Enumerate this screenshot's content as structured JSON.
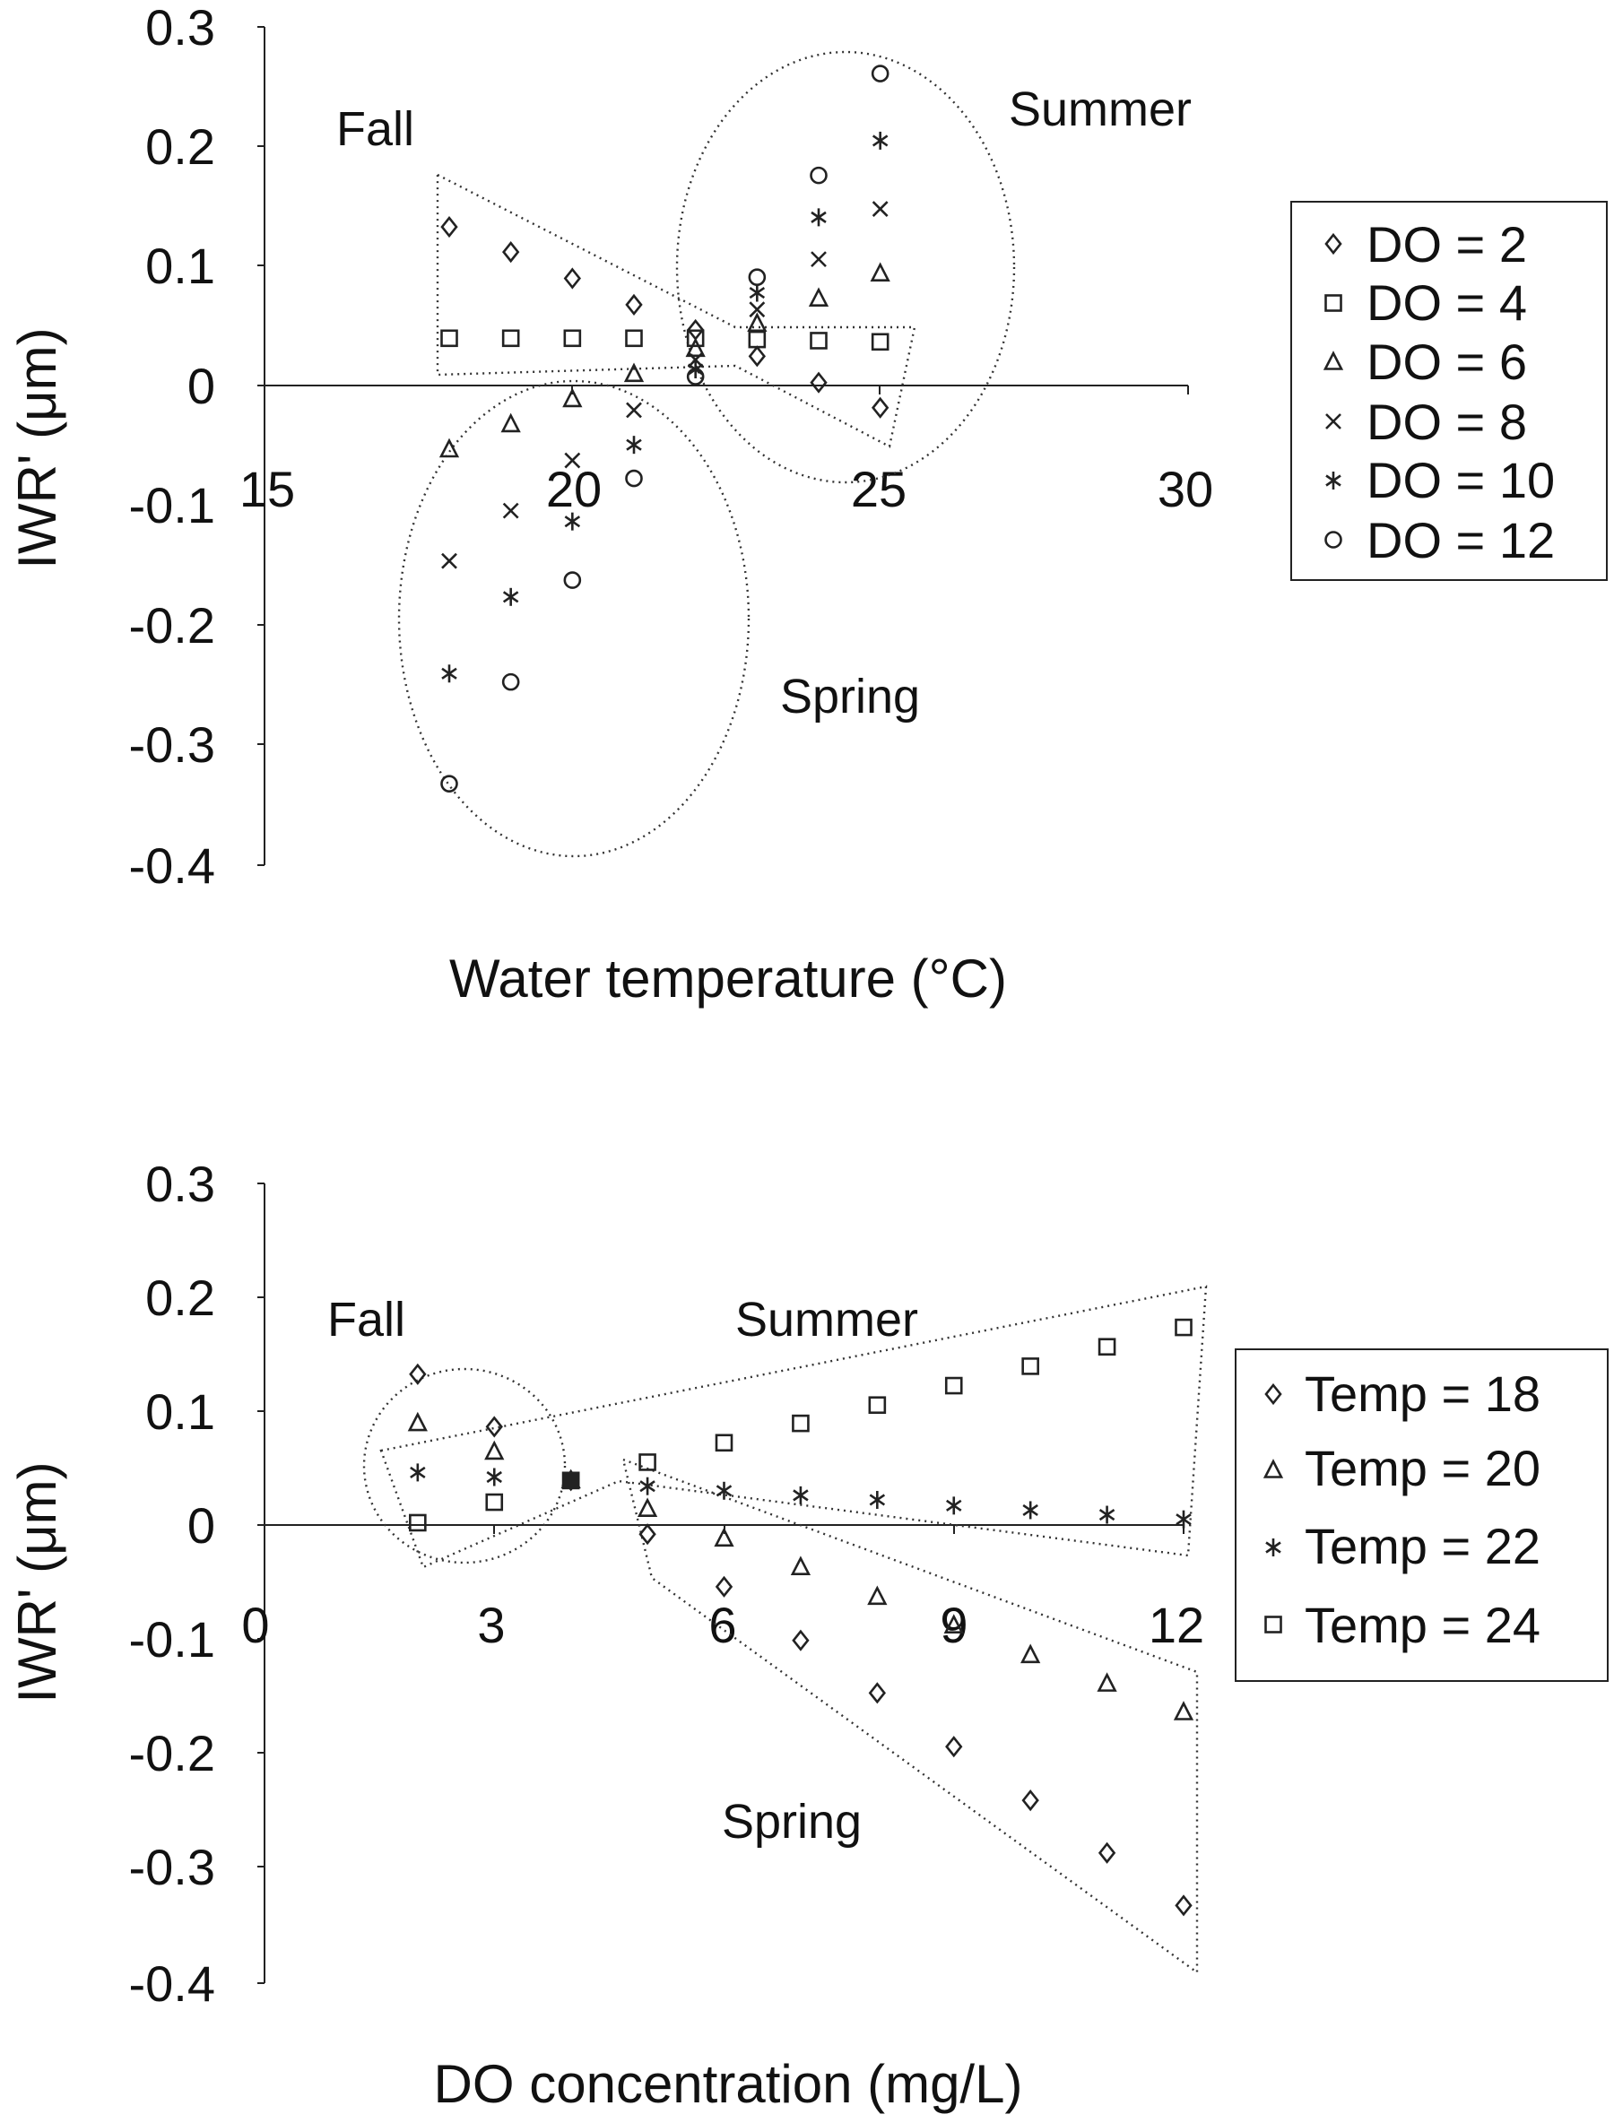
{
  "chart_data": [
    {
      "type": "scatter",
      "title": "",
      "xlabel": "Water temperature (°C)",
      "ylabel": "IWR' (μm)",
      "xlim": [
        15,
        30
      ],
      "ylim": [
        -0.4,
        0.3
      ],
      "x_ticks": [
        "15",
        "20",
        "25",
        "30"
      ],
      "y_ticks": [
        "0.3",
        "0.2",
        "0.1",
        "0",
        "-0.1",
        "-0.2",
        "-0.3",
        "-0.4"
      ],
      "grid": false,
      "legend_position": "right",
      "x": [
        18,
        19,
        20,
        21,
        22,
        23,
        24,
        25
      ],
      "series": [
        {
          "name": "DO = 2",
          "marker": "diamond",
          "values": [
            0.133,
            0.112,
            0.09,
            0.068,
            0.047,
            0.025,
            0.003,
            -0.018
          ]
        },
        {
          "name": "DO = 4",
          "marker": "square",
          "values": [
            0.04,
            0.04,
            0.04,
            0.04,
            0.04,
            0.039,
            0.038,
            0.037
          ]
        },
        {
          "name": "DO = 6",
          "marker": "triangle",
          "values": [
            -0.053,
            -0.032,
            -0.011,
            0.01,
            0.031,
            0.052,
            0.073,
            0.094
          ]
        },
        {
          "name": "DO = 8",
          "marker": "x",
          "values": [
            -0.146,
            -0.104,
            -0.062,
            -0.02,
            0.022,
            0.064,
            0.106,
            0.148
          ]
        },
        {
          "name": "DO = 10",
          "marker": "asterisk",
          "values": [
            -0.24,
            -0.176,
            -0.113,
            -0.049,
            0.014,
            0.078,
            0.141,
            0.205
          ]
        },
        {
          "name": "DO = 12",
          "marker": "circle",
          "values": [
            -0.332,
            -0.247,
            -0.162,
            -0.077,
            0.008,
            0.091,
            0.176,
            0.261
          ]
        }
      ],
      "annotations": [
        "Fall",
        "Summer",
        "Spring"
      ]
    },
    {
      "type": "scatter",
      "title": "",
      "xlabel": "DO concentration (mg/L)",
      "ylabel": "IWR' (μm)",
      "xlim": [
        0,
        12
      ],
      "ylim": [
        -0.4,
        0.3
      ],
      "x_ticks": [
        "0",
        "3",
        "6",
        "9",
        "12"
      ],
      "y_ticks": [
        "0.3",
        "0.2",
        "0.1",
        "0",
        "-0.1",
        "-0.2",
        "-0.3",
        "-0.4"
      ],
      "grid": false,
      "legend_position": "right",
      "x": [
        2,
        3,
        4,
        5,
        6,
        7,
        8,
        9,
        10,
        11,
        12
      ],
      "series": [
        {
          "name": "Temp = 18",
          "marker": "diamond",
          "values": [
            0.133,
            0.087,
            0.04,
            -0.007,
            -0.053,
            -0.1,
            -0.146,
            -0.193,
            -0.24,
            -0.286,
            -0.332
          ]
        },
        {
          "name": "Temp = 20",
          "marker": "triangle",
          "values": [
            0.09,
            0.065,
            0.04,
            0.015,
            -0.011,
            -0.036,
            -0.062,
            -0.087,
            -0.113,
            -0.138,
            -0.163
          ]
        },
        {
          "name": "Temp = 22",
          "marker": "asterisk",
          "values": [
            0.047,
            0.043,
            0.04,
            0.035,
            0.031,
            0.027,
            0.023,
            0.018,
            0.014,
            0.01,
            0.006
          ]
        },
        {
          "name": "Temp = 24",
          "marker": "square",
          "values": [
            0.003,
            0.021,
            0.04,
            0.056,
            0.073,
            0.09,
            0.106,
            0.123,
            0.14,
            0.157,
            0.174
          ]
        }
      ],
      "annotations": [
        "Fall",
        "Summer",
        "Spring"
      ]
    }
  ]
}
